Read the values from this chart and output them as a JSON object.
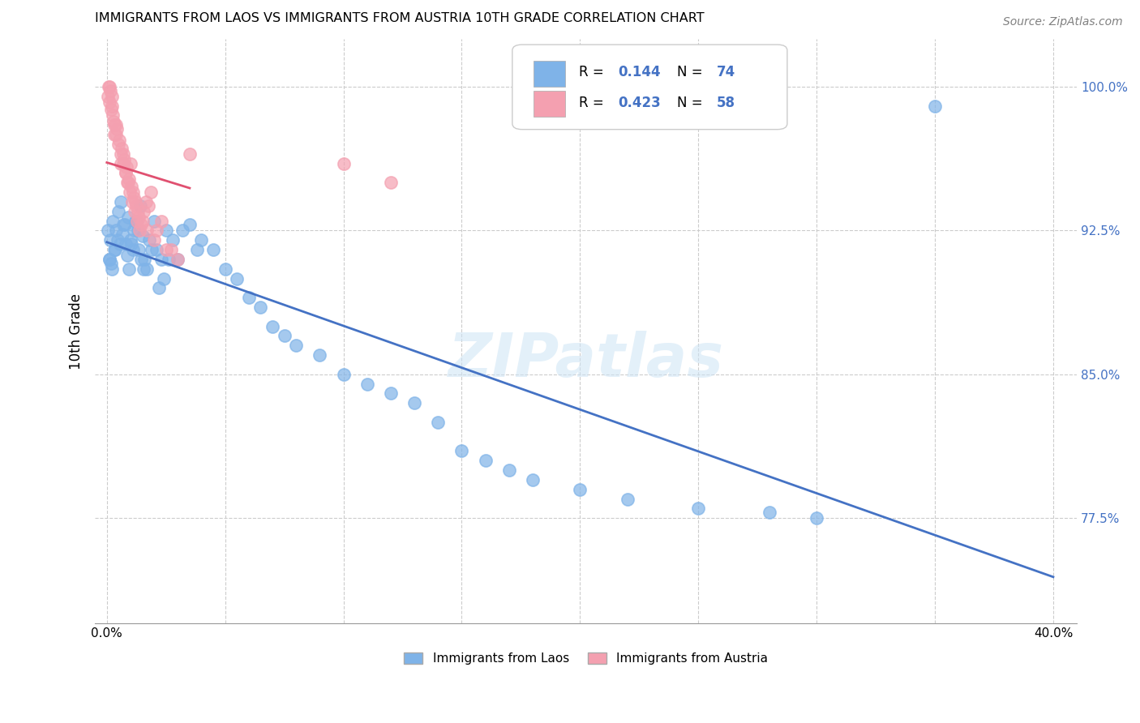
{
  "title": "IMMIGRANTS FROM LAOS VS IMMIGRANTS FROM AUSTRIA 10TH GRADE CORRELATION CHART",
  "source": "Source: ZipAtlas.com",
  "ylabel": "10th Grade",
  "xlim": [
    -0.5,
    41.0
  ],
  "ylim": [
    72.0,
    102.5
  ],
  "laos_color": "#7fb3e8",
  "austria_color": "#f4a0b0",
  "laos_line_color": "#4472c4",
  "austria_line_color": "#e05070",
  "laos_R": 0.144,
  "laos_N": 74,
  "austria_R": 0.423,
  "austria_N": 58,
  "laos_x": [
    0.1,
    0.2,
    0.15,
    0.3,
    0.25,
    0.4,
    0.5,
    0.6,
    0.7,
    0.8,
    0.9,
    1.0,
    1.1,
    1.2,
    1.3,
    1.4,
    1.5,
    1.6,
    1.7,
    1.8,
    1.9,
    2.0,
    2.2,
    2.4,
    2.6,
    2.8,
    3.0,
    3.2,
    3.5,
    3.8,
    4.0,
    4.5,
    5.0,
    5.5,
    6.0,
    6.5,
    7.0,
    7.5,
    8.0,
    9.0,
    10.0,
    11.0,
    12.0,
    13.0,
    14.0,
    15.0,
    16.0,
    17.0,
    18.0,
    20.0,
    22.0,
    25.0,
    28.0,
    30.0,
    0.05,
    0.12,
    0.18,
    0.35,
    0.45,
    0.55,
    0.65,
    0.75,
    0.85,
    0.95,
    1.05,
    1.15,
    1.25,
    1.35,
    1.45,
    1.55,
    2.1,
    2.3,
    35.0,
    2.5
  ],
  "laos_y": [
    91.0,
    90.5,
    92.0,
    91.5,
    93.0,
    92.5,
    93.5,
    94.0,
    92.8,
    91.8,
    93.2,
    92.0,
    91.5,
    93.0,
    92.5,
    93.8,
    92.2,
    91.0,
    90.5,
    92.0,
    91.5,
    93.0,
    89.5,
    90.0,
    91.0,
    92.0,
    91.0,
    92.5,
    92.8,
    91.5,
    92.0,
    91.5,
    90.5,
    90.0,
    89.0,
    88.5,
    87.5,
    87.0,
    86.5,
    86.0,
    85.0,
    84.5,
    84.0,
    83.5,
    82.5,
    81.0,
    80.5,
    80.0,
    79.5,
    79.0,
    78.5,
    78.0,
    77.8,
    77.5,
    92.5,
    91.0,
    90.8,
    91.5,
    92.0,
    91.8,
    92.3,
    92.8,
    91.2,
    90.5,
    91.8,
    92.5,
    93.0,
    91.5,
    91.0,
    90.5,
    91.5,
    91.0,
    99.0,
    92.5
  ],
  "austria_x": [
    0.05,
    0.1,
    0.15,
    0.2,
    0.25,
    0.3,
    0.4,
    0.5,
    0.6,
    0.7,
    0.8,
    0.9,
    1.0,
    1.1,
    1.2,
    1.3,
    1.5,
    1.7,
    2.0,
    2.5,
    3.0,
    0.12,
    0.18,
    0.22,
    0.32,
    0.42,
    0.52,
    0.62,
    0.72,
    0.82,
    0.92,
    1.02,
    1.15,
    1.25,
    1.35,
    1.45,
    1.55,
    1.65,
    1.75,
    1.85,
    2.1,
    2.3,
    2.7,
    3.5,
    0.08,
    0.28,
    0.38,
    0.58,
    0.68,
    0.78,
    0.88,
    0.98,
    1.08,
    1.18,
    1.28,
    1.38,
    10.0,
    12.0
  ],
  "austria_y": [
    99.5,
    100.0,
    99.8,
    99.0,
    98.5,
    97.5,
    98.0,
    97.0,
    96.0,
    96.5,
    95.5,
    95.0,
    96.0,
    94.5,
    94.0,
    93.5,
    93.0,
    92.5,
    92.0,
    91.5,
    91.0,
    99.2,
    98.8,
    99.5,
    98.0,
    97.8,
    97.2,
    96.8,
    96.2,
    95.8,
    95.2,
    94.8,
    94.2,
    93.8,
    93.2,
    92.8,
    93.5,
    94.0,
    93.8,
    94.5,
    92.5,
    93.0,
    91.5,
    96.5,
    100.0,
    98.2,
    97.5,
    96.5,
    96.0,
    95.5,
    95.0,
    94.5,
    94.0,
    93.5,
    93.0,
    92.5,
    96.0,
    95.0
  ],
  "watermark": "ZIPatlas",
  "legend_laos_label": "Immigrants from Laos",
  "legend_austria_label": "Immigrants from Austria",
  "x_ticks": [
    0,
    5,
    10,
    15,
    20,
    25,
    30,
    35,
    40
  ],
  "x_tick_labels": [
    "0.0%",
    "",
    "",
    "",
    "",
    "",
    "",
    "",
    "40.0%"
  ],
  "y_ticks": [
    77.5,
    85.0,
    92.5,
    100.0
  ],
  "y_tick_labels": [
    "77.5%",
    "85.0%",
    "92.5%",
    "100.0%"
  ]
}
